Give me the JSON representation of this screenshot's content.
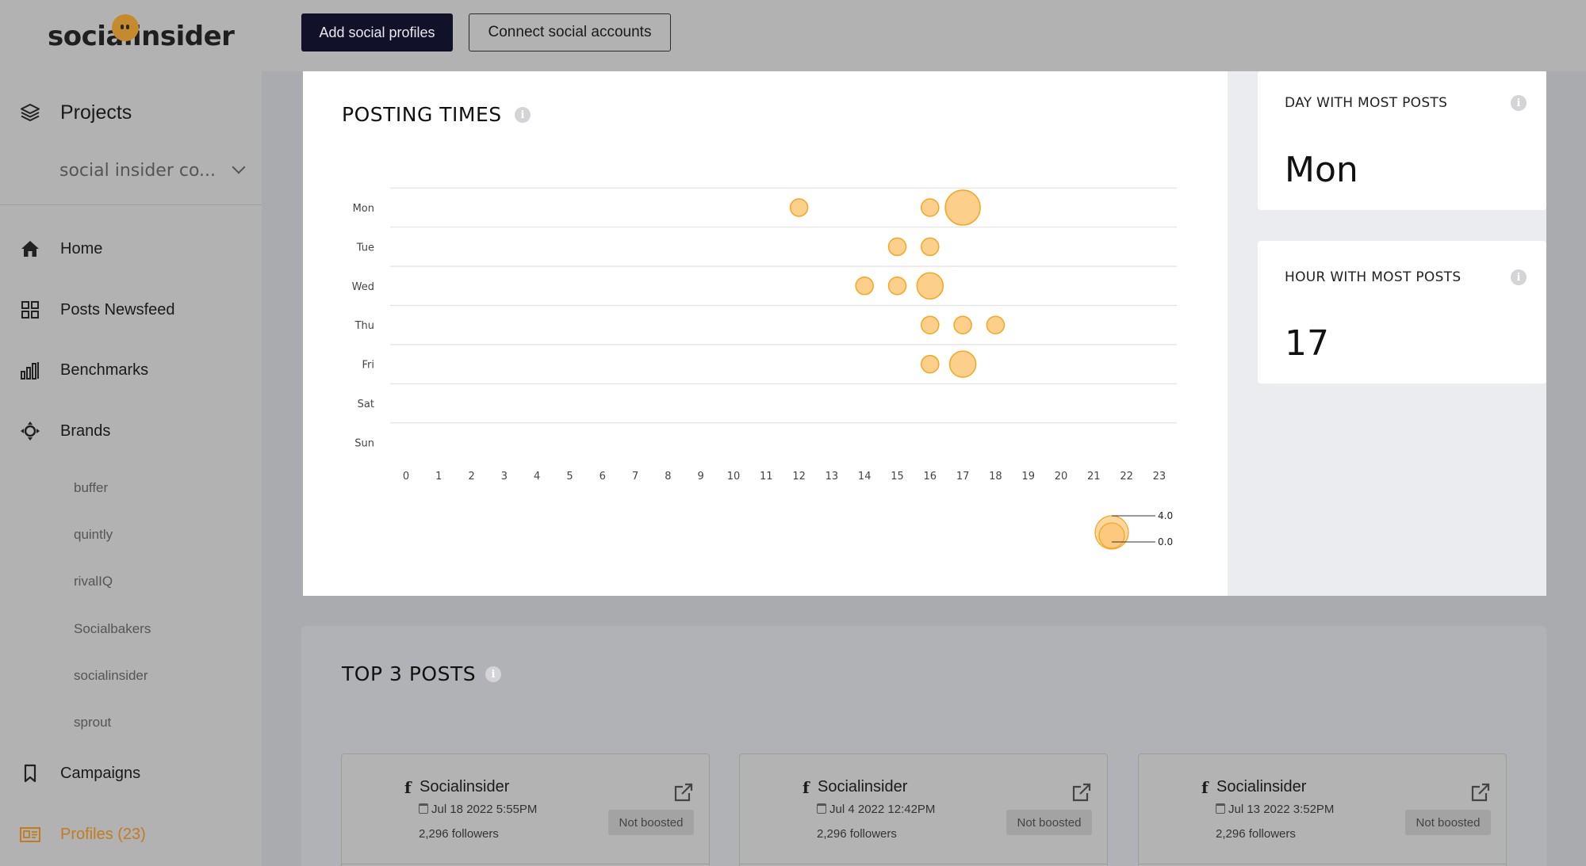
{
  "brand": {
    "logo_text": "socialinsider"
  },
  "topbar": {
    "add_profiles": "Add social profiles",
    "connect_accounts": "Connect social accounts"
  },
  "sidebar": {
    "projects_label": "Projects",
    "project_selected": "social insider co...",
    "items": [
      {
        "label": "Home",
        "icon": "home-icon"
      },
      {
        "label": "Posts Newsfeed",
        "icon": "grid-icon"
      },
      {
        "label": "Benchmarks",
        "icon": "bar-chart-icon"
      },
      {
        "label": "Brands",
        "icon": "crosshair-icon"
      }
    ],
    "brands": [
      "buffer",
      "quintly",
      "rivalIQ",
      "Socialbakers",
      "socialinsider",
      "sprout"
    ],
    "campaigns_label": "Campaigns",
    "profiles_label": "Profiles (23)",
    "profiles_color": "#c07c1f"
  },
  "posting_times": {
    "title": "POSTING TIMES",
    "legend_max": "4.0",
    "legend_min": "0.0"
  },
  "stats": {
    "day_title": "DAY WITH MOST POSTS",
    "day_value": "Mon",
    "hour_title": "HOUR WITH MOST POSTS",
    "hour_value": "17"
  },
  "top_posts": {
    "title": "TOP 3 POSTS",
    "posts": [
      {
        "account": "Socialinsider",
        "date": "Jul 18 2022 5:55PM",
        "followers": "2,296 followers",
        "badge": "Not boosted"
      },
      {
        "account": "Socialinsider",
        "date": "Jul 4 2022 12:42PM",
        "followers": "2,296 followers",
        "badge": "Not boosted"
      },
      {
        "account": "Socialinsider",
        "date": "Jul 13 2022 3:52PM",
        "followers": "2,296 followers",
        "badge": "Not boosted"
      }
    ]
  },
  "chart_data": {
    "type": "scatter",
    "subtype": "bubble",
    "y_categories": [
      "Mon",
      "Tue",
      "Wed",
      "Thu",
      "Fri",
      "Sat",
      "Sun"
    ],
    "x_ticks": [
      0,
      1,
      2,
      3,
      4,
      5,
      6,
      7,
      8,
      9,
      10,
      11,
      12,
      13,
      14,
      15,
      16,
      17,
      18,
      19,
      20,
      21,
      22,
      23
    ],
    "xlim": [
      0,
      23
    ],
    "size_legend": [
      4.0,
      0.0
    ],
    "bubble_color": "#fbc777",
    "bubble_stroke": "#f5a623",
    "points": [
      {
        "day": "Mon",
        "hour": 12,
        "count": 1
      },
      {
        "day": "Mon",
        "hour": 16,
        "count": 1
      },
      {
        "day": "Mon",
        "hour": 17,
        "count": 3
      },
      {
        "day": "Tue",
        "hour": 15,
        "count": 1
      },
      {
        "day": "Tue",
        "hour": 16,
        "count": 1
      },
      {
        "day": "Wed",
        "hour": 14,
        "count": 1
      },
      {
        "day": "Wed",
        "hour": 15,
        "count": 1
      },
      {
        "day": "Wed",
        "hour": 16,
        "count": 2
      },
      {
        "day": "Thu",
        "hour": 16,
        "count": 1
      },
      {
        "day": "Thu",
        "hour": 17,
        "count": 1
      },
      {
        "day": "Thu",
        "hour": 18,
        "count": 1
      },
      {
        "day": "Fri",
        "hour": 16,
        "count": 1
      },
      {
        "day": "Fri",
        "hour": 17,
        "count": 2
      }
    ]
  }
}
